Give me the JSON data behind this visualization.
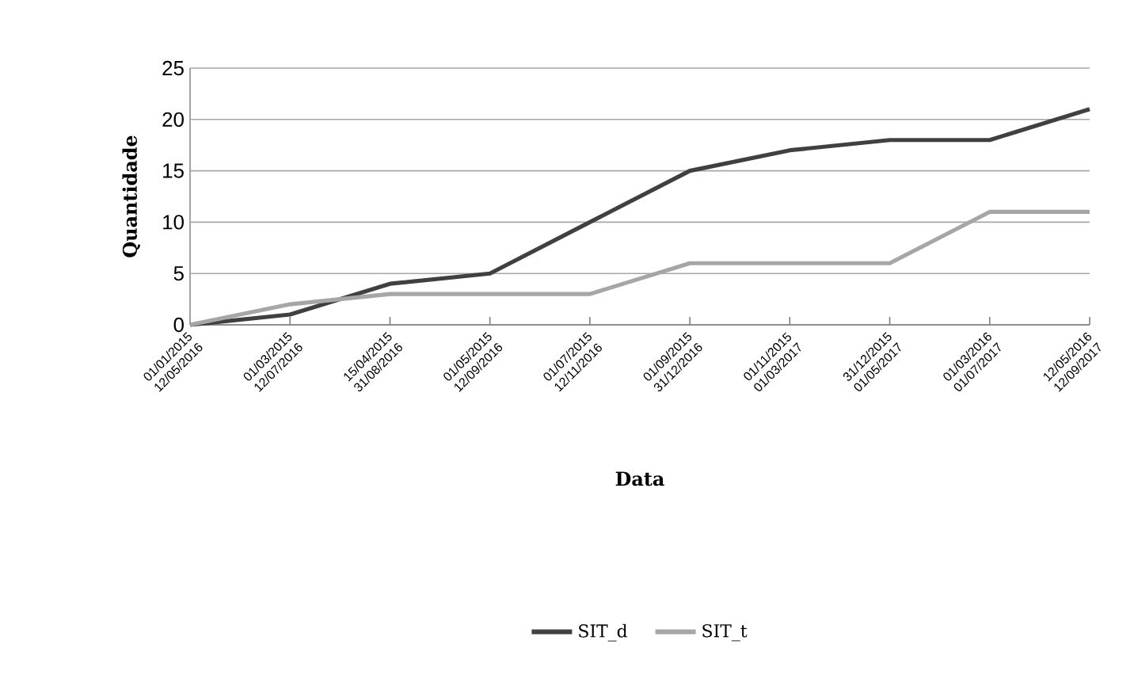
{
  "chart_data": {
    "type": "line",
    "xlabel": "Data",
    "ylabel": "Quantidade",
    "categories": [
      "01/01/2015 12/05/2016",
      "01/03/2015 12/07/2016",
      "15/04/2015 31/08/2016",
      "01/05/2015 12/09/2016",
      "01/07/2015 12/11/2016",
      "01/09/2015 31/12/2016",
      "01/11/2015 01/03/2017",
      "31/12/2015 01/05/2017",
      "01/03/2016 01/07/2017",
      "12/05/2016 12/09/2017"
    ],
    "series": [
      {
        "name": "SIT_d",
        "color": "#404040",
        "values": [
          0,
          1,
          4,
          5,
          10,
          15,
          17,
          18,
          18,
          21
        ]
      },
      {
        "name": "SIT_t",
        "color": "#a6a6a6",
        "values": [
          0,
          2,
          3,
          3,
          3,
          6,
          6,
          6,
          11,
          11
        ]
      }
    ],
    "ylim": [
      0,
      25
    ],
    "yticks": [
      0,
      5,
      10,
      15,
      20,
      25
    ],
    "grid": "y",
    "legend": "bottom",
    "marker": "none",
    "line_style": "solid"
  }
}
